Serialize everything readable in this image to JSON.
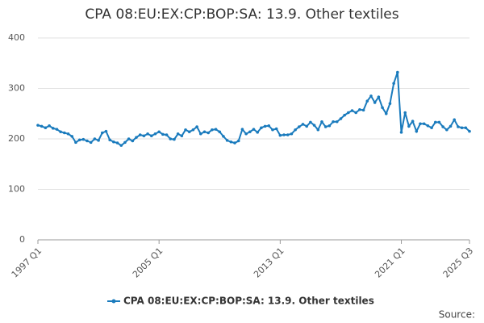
{
  "chart_data": {
    "type": "line",
    "title": "CPA 08:EU:EX:CP:BOP:SA: 13.9. Other textiles",
    "categories": [
      "1997 Q1",
      null,
      null,
      null,
      null,
      null,
      null,
      null,
      null,
      null,
      null,
      null,
      null,
      null,
      null,
      null,
      null,
      null,
      null,
      null,
      null,
      null,
      null,
      null,
      null,
      null,
      null,
      null,
      null,
      null,
      null,
      null,
      "2005 Q1",
      null,
      null,
      null,
      null,
      null,
      null,
      null,
      null,
      null,
      null,
      null,
      null,
      null,
      null,
      null,
      null,
      null,
      null,
      null,
      null,
      null,
      null,
      null,
      null,
      null,
      null,
      null,
      null,
      null,
      null,
      null,
      "2013 Q1",
      null,
      null,
      null,
      null,
      null,
      null,
      null,
      null,
      null,
      null,
      null,
      null,
      null,
      null,
      null,
      null,
      null,
      null,
      null,
      null,
      null,
      null,
      null,
      null,
      null,
      null,
      null,
      null,
      null,
      null,
      null,
      "2021 Q1",
      null,
      null,
      null,
      null,
      null,
      null,
      null,
      null,
      null,
      null,
      null,
      null,
      null,
      null,
      null,
      null,
      null,
      "2025 Q3"
    ],
    "series": [
      {
        "name": "CPA 08:EU:EX:CP:BOP:SA: 13.9. Other textiles",
        "color": "#1a7bbd",
        "values": [
          227,
          225,
          222,
          226,
          221,
          219,
          214,
          212,
          210,
          205,
          193,
          198,
          199,
          196,
          193,
          200,
          197,
          212,
          215,
          198,
          194,
          192,
          187,
          193,
          200,
          196,
          203,
          208,
          206,
          210,
          206,
          210,
          214,
          209,
          208,
          200,
          199,
          210,
          206,
          218,
          214,
          218,
          224,
          210,
          214,
          212,
          218,
          219,
          214,
          205,
          197,
          194,
          192,
          196,
          219,
          210,
          214,
          219,
          213,
          222,
          225,
          226,
          218,
          220,
          207,
          208,
          208,
          210,
          218,
          224,
          229,
          225,
          233,
          227,
          218,
          234,
          224,
          226,
          234,
          234,
          240,
          247,
          252,
          256,
          252,
          258,
          257,
          275,
          285,
          272,
          283,
          262,
          250,
          270,
          310,
          332,
          213,
          252,
          225,
          235,
          215,
          230,
          230,
          226,
          222,
          233,
          233,
          224,
          218,
          225,
          238,
          224,
          222,
          222,
          215
        ]
      }
    ],
    "ylim": [
      0,
      400
    ],
    "yticks": [
      0,
      100,
      200,
      300,
      400
    ],
    "grid": true,
    "source": "Source:"
  }
}
